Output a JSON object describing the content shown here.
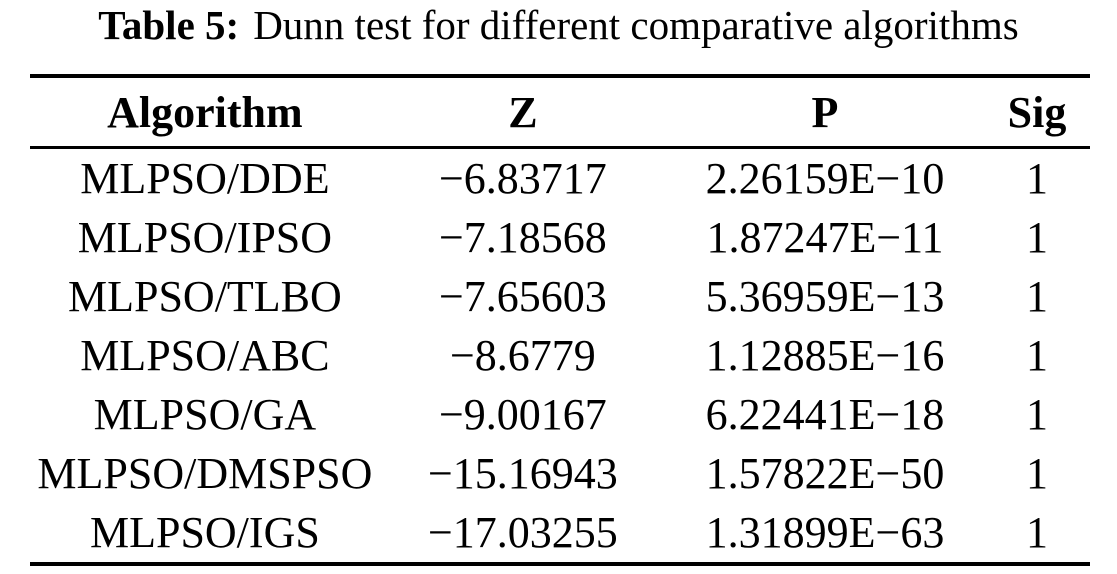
{
  "caption": {
    "label": "Table 5:",
    "text": "Dunn test for different comparative algorithms"
  },
  "table": {
    "columns": [
      "Algorithm",
      "Z",
      "P",
      "Sig"
    ],
    "rows": [
      [
        "MLPSO/DDE",
        "−6.83717",
        "2.26159E−10",
        "1"
      ],
      [
        "MLPSO/IPSO",
        "−7.18568",
        "1.87247E−11",
        "1"
      ],
      [
        "MLPSO/TLBO",
        "−7.65603",
        "5.36959E−13",
        "1"
      ],
      [
        "MLPSO/ABC",
        "−8.6779",
        "1.12885E−16",
        "1"
      ],
      [
        "MLPSO/GA",
        "−9.00167",
        "6.22441E−18",
        "1"
      ],
      [
        "MLPSO/DMSPSO",
        "−15.16943",
        "1.57822E−50",
        "1"
      ],
      [
        "MLPSO/IGS",
        "−17.03255",
        "1.31899E−63",
        "1"
      ]
    ]
  },
  "colors": {
    "text": "#000000",
    "background": "#ffffff",
    "rule": "#000000"
  }
}
